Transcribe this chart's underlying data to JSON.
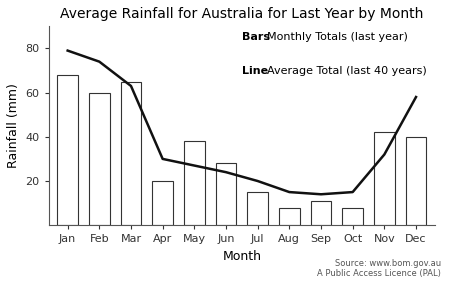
{
  "title": "Average Rainfall for Australia for Last Year by Month",
  "xlabel": "Month",
  "ylabel": "Rainfall (mm)",
  "months": [
    "Jan",
    "Feb",
    "Mar",
    "Apr",
    "May",
    "Jun",
    "Jul",
    "Aug",
    "Sep",
    "Oct",
    "Nov",
    "Dec"
  ],
  "bar_values": [
    68,
    60,
    65,
    20,
    38,
    28,
    15,
    8,
    11,
    8,
    42,
    40
  ],
  "line_values": [
    79,
    74,
    63,
    30,
    27,
    24,
    20,
    15,
    14,
    15,
    32,
    58
  ],
  "bar_color": "#ffffff",
  "bar_edgecolor": "#333333",
  "line_color": "#111111",
  "line_width": 1.8,
  "ylim": [
    0,
    90
  ],
  "yticks": [
    20,
    40,
    60,
    80
  ],
  "legend_bars_label_key": "Bars",
  "legend_bars_label_val": "Monthly Totals (last year)",
  "legend_line_label_key": "Line",
  "legend_line_label_val": "Average Total (last 40 years)",
  "source_text": "Source: www.bom.gov.au\nA Public Access Licence (PAL)",
  "background_color": "#ffffff",
  "title_fontsize": 10,
  "axis_label_fontsize": 9,
  "tick_fontsize": 8,
  "legend_fontsize": 8,
  "source_fontsize": 6
}
